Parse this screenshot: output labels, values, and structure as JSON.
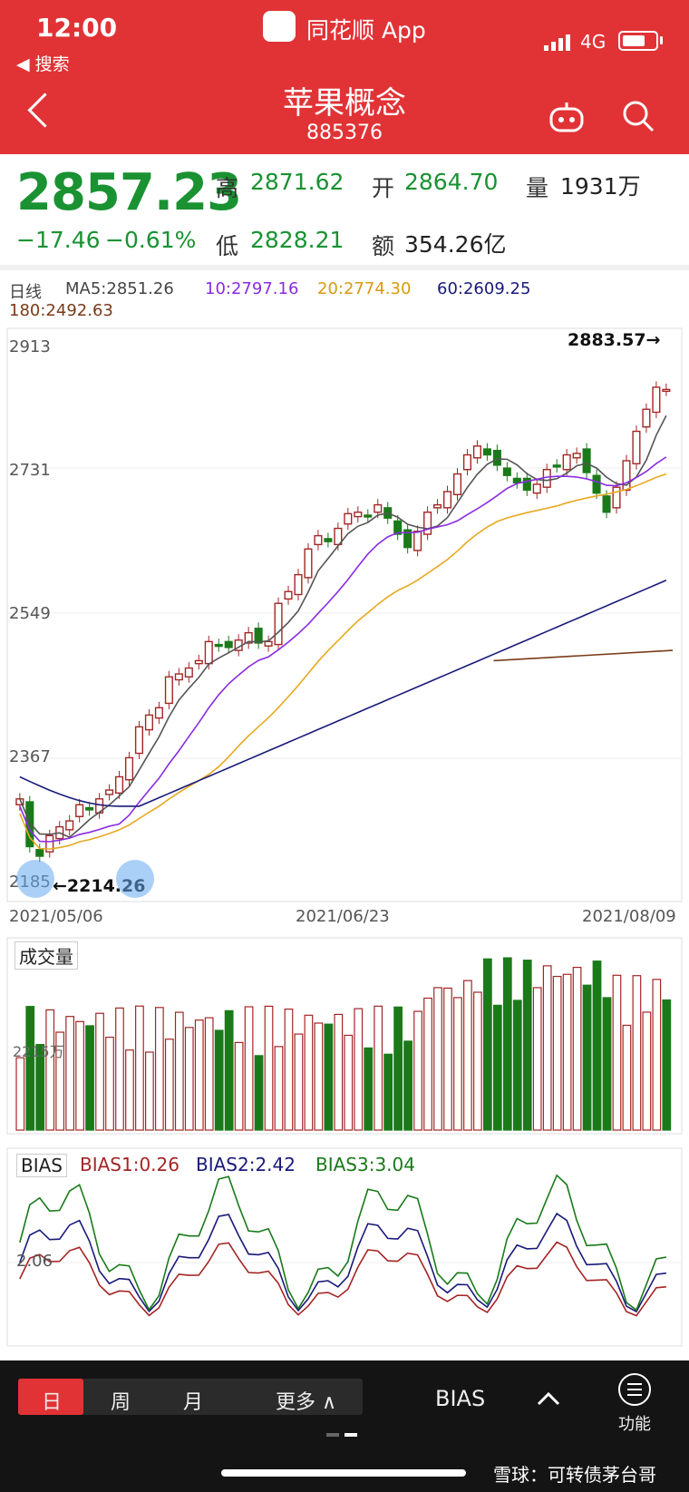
{
  "status": {
    "time": "12:00",
    "back_app": "◀ 搜索",
    "app": "同花顺 App",
    "network": "4G"
  },
  "header": {
    "title": "苹果概念",
    "code": "885376"
  },
  "quote": {
    "price": "2857.23",
    "change": "−17.46",
    "change_pct": "−0.61%",
    "high_label": "高",
    "high": "2871.62",
    "open_label": "开",
    "open": "2864.70",
    "volume_label": "量",
    "volume": "1931万",
    "low_label": "低",
    "low": "2828.21",
    "amount_label": "额",
    "amount": "354.26亿"
  },
  "ma": {
    "period": "日线",
    "ma5": "MA5:2851.26",
    "ma10": "10:2797.16",
    "ma20": "20:2774.30",
    "ma60": "60:2609.25",
    "ma180": "180:2492.63"
  },
  "colors": {
    "up": "#a42525",
    "down": "#1a7a1a",
    "ma5": "#555555",
    "ma10": "#8a2be2",
    "ma20": "#e8a820",
    "ma60": "#1a1a7a",
    "ma180": "#7a3a18"
  },
  "chart_data": {
    "type": "candlestick",
    "y_ticks": [
      "2913",
      "2731",
      "2549",
      "2367",
      "2185"
    ],
    "x_ticks": [
      "2021/05/06",
      "2021/06/23",
      "2021/08/09"
    ],
    "max_label": "2883.57→",
    "min_label": "←2214.26",
    "volume_title": "成交量",
    "volume_axis_label": "2215万",
    "bias_title": "BIAS",
    "bias1": "BIAS1:0.26",
    "bias2": "BIAS2:2.42",
    "bias3": "BIAS3:3.04",
    "bias_tick": "2.06"
  },
  "footer": {
    "tab_day": "日",
    "tab_week": "周",
    "tab_month": "月",
    "tab_more": "更多 ∧",
    "indicator": "BIAS",
    "function": "功能",
    "watermark": "雪球：可转债茅台哥"
  }
}
